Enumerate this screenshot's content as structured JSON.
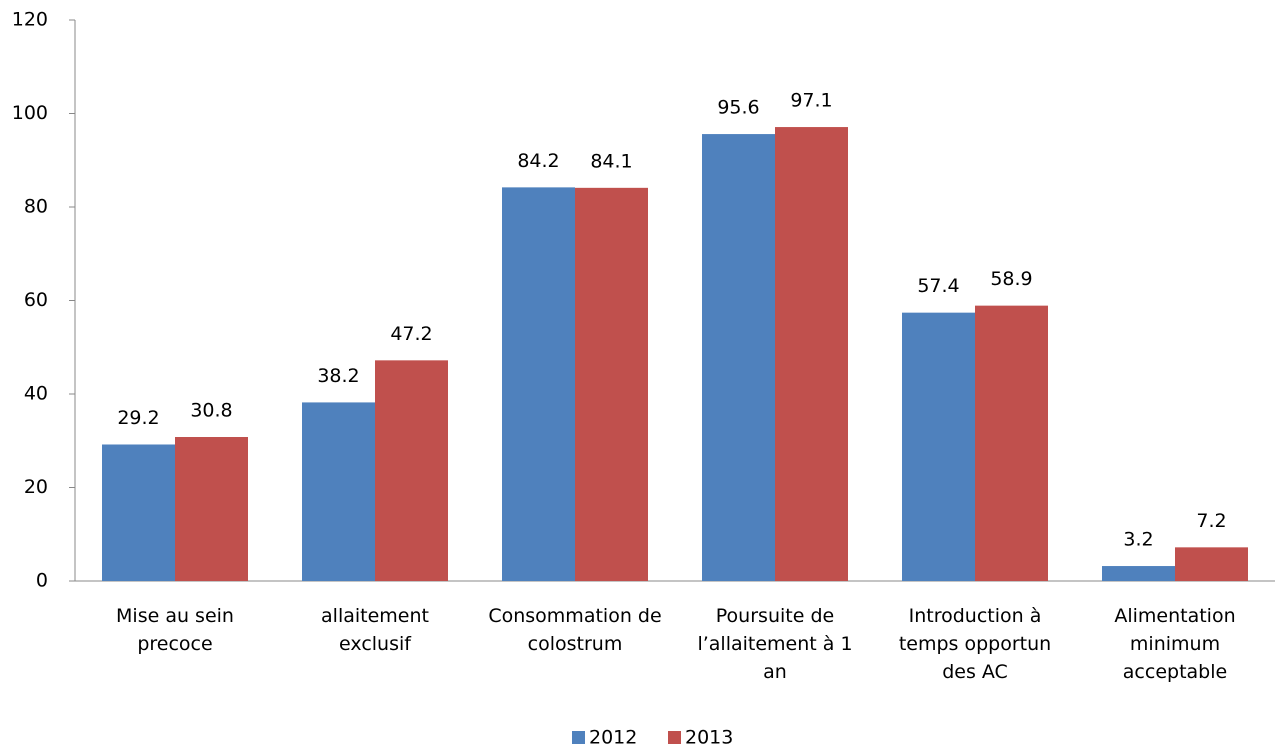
{
  "chart_data": {
    "type": "bar",
    "categories": [
      "Mise au sein precoce",
      "allaitement exclusif",
      "Consommation de colostrum",
      "Poursuite de l’allaitement à  1 an",
      "Introduction à temps opportun des AC",
      "Alimentation minimum acceptable"
    ],
    "series": [
      {
        "name": "2012",
        "color": "#4f81bd",
        "values": [
          29.2,
          38.2,
          84.2,
          95.6,
          57.4,
          3.2
        ]
      },
      {
        "name": "2013",
        "color": "#c0504d",
        "values": [
          30.8,
          47.2,
          84.1,
          97.1,
          58.9,
          7.2
        ]
      }
    ],
    "ylim": [
      0,
      120
    ],
    "yticks": [
      0,
      20,
      40,
      60,
      80,
      100,
      120
    ],
    "grid": false,
    "legend": "bottom"
  }
}
